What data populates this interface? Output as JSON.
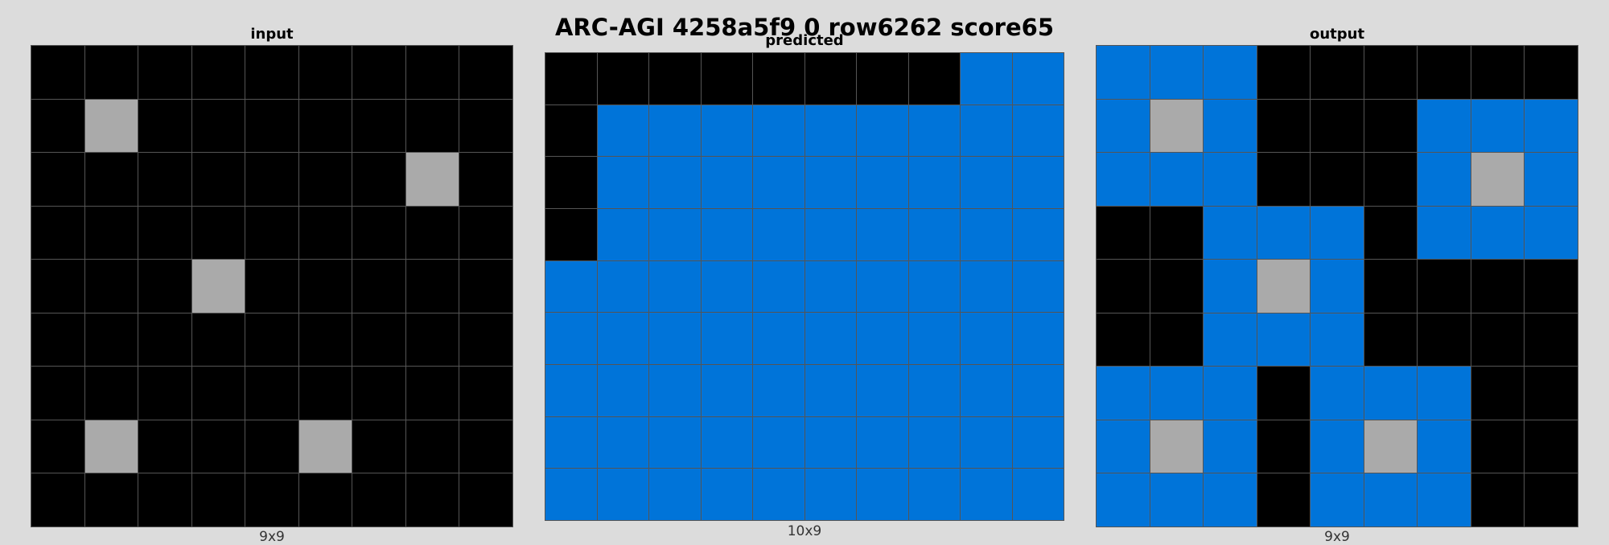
{
  "title": "ARC-AGI 4258a5f9 0 row6262 score65",
  "palette": {
    "0": "#000000",
    "1": "#0074d9",
    "5": "#aaaaaa"
  },
  "panels": [
    {
      "key": "input",
      "label": "input",
      "dims": "9x9",
      "grid": [
        [
          0,
          0,
          0,
          0,
          0,
          0,
          0,
          0,
          0
        ],
        [
          0,
          5,
          0,
          0,
          0,
          0,
          0,
          0,
          0
        ],
        [
          0,
          0,
          0,
          0,
          0,
          0,
          0,
          5,
          0
        ],
        [
          0,
          0,
          0,
          0,
          0,
          0,
          0,
          0,
          0
        ],
        [
          0,
          0,
          0,
          5,
          0,
          0,
          0,
          0,
          0
        ],
        [
          0,
          0,
          0,
          0,
          0,
          0,
          0,
          0,
          0
        ],
        [
          0,
          0,
          0,
          0,
          0,
          0,
          0,
          0,
          0
        ],
        [
          0,
          5,
          0,
          0,
          0,
          5,
          0,
          0,
          0
        ],
        [
          0,
          0,
          0,
          0,
          0,
          0,
          0,
          0,
          0
        ]
      ]
    },
    {
      "key": "predicted",
      "label": "predicted",
      "dims": "10x9",
      "grid": [
        [
          0,
          0,
          0,
          0,
          0,
          0,
          0,
          0,
          1,
          1
        ],
        [
          0,
          1,
          1,
          1,
          1,
          1,
          1,
          1,
          1,
          1
        ],
        [
          0,
          1,
          1,
          1,
          1,
          1,
          1,
          1,
          1,
          1
        ],
        [
          0,
          1,
          1,
          1,
          1,
          1,
          1,
          1,
          1,
          1
        ],
        [
          1,
          1,
          1,
          1,
          1,
          1,
          1,
          1,
          1,
          1
        ],
        [
          1,
          1,
          1,
          1,
          1,
          1,
          1,
          1,
          1,
          1
        ],
        [
          1,
          1,
          1,
          1,
          1,
          1,
          1,
          1,
          1,
          1
        ],
        [
          1,
          1,
          1,
          1,
          1,
          1,
          1,
          1,
          1,
          1
        ],
        [
          1,
          1,
          1,
          1,
          1,
          1,
          1,
          1,
          1,
          1
        ]
      ]
    },
    {
      "key": "output",
      "label": "output",
      "dims": "9x9",
      "grid": [
        [
          1,
          1,
          1,
          0,
          0,
          0,
          0,
          0,
          0
        ],
        [
          1,
          5,
          1,
          0,
          0,
          0,
          1,
          1,
          1
        ],
        [
          1,
          1,
          1,
          0,
          0,
          0,
          1,
          5,
          1
        ],
        [
          0,
          0,
          1,
          1,
          1,
          0,
          1,
          1,
          1
        ],
        [
          0,
          0,
          1,
          5,
          1,
          0,
          0,
          0,
          0
        ],
        [
          0,
          0,
          1,
          1,
          1,
          0,
          0,
          0,
          0
        ],
        [
          1,
          1,
          1,
          0,
          1,
          1,
          1,
          0,
          0
        ],
        [
          1,
          5,
          1,
          0,
          1,
          5,
          1,
          0,
          0
        ],
        [
          1,
          1,
          1,
          0,
          1,
          1,
          1,
          0,
          0
        ]
      ]
    }
  ]
}
